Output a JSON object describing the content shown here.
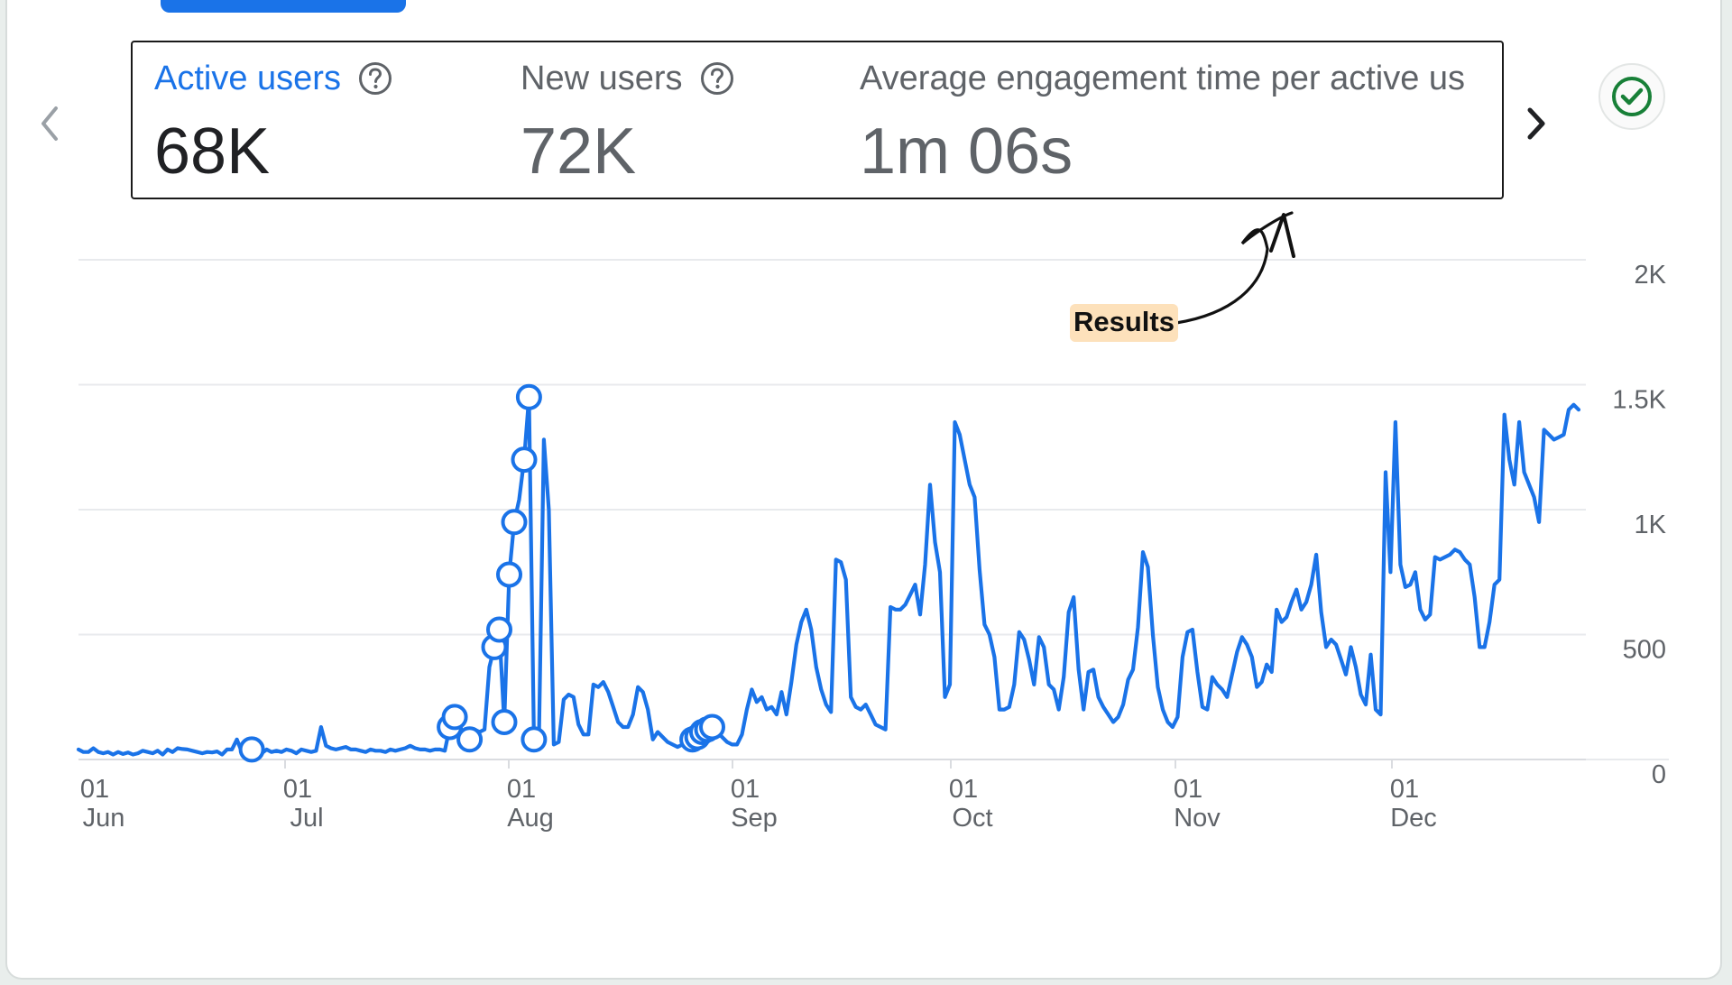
{
  "metrics": [
    {
      "label": "Active users",
      "value": "68K",
      "active": true
    },
    {
      "label": "New users",
      "value": "72K",
      "active": false
    },
    {
      "label": "Average engagement time per active us",
      "value": "1m 06s",
      "active": false
    }
  ],
  "annotation": {
    "label": "Results"
  },
  "colors": {
    "accent": "#1a73e8",
    "text_dark": "#202124",
    "text_muted": "#5f6368",
    "success": "#188038",
    "annotation_bg": "#fde1bb"
  },
  "icons": {
    "prev": "chevron-left-icon",
    "next": "chevron-right-icon",
    "help": "help-circle-icon",
    "check": "check-circle-icon"
  },
  "chart_data": {
    "type": "line",
    "series": [
      {
        "values": [
          40,
          30,
          30,
          45,
          30,
          25,
          30,
          20,
          30,
          22,
          28,
          20,
          25,
          35,
          30,
          25,
          35,
          20,
          40,
          30,
          45,
          42,
          40,
          35,
          30,
          25,
          30,
          28,
          32,
          20,
          40,
          40,
          80,
          30,
          35,
          40,
          30,
          25,
          40,
          30,
          35,
          30,
          40,
          35,
          25,
          40,
          35,
          30,
          35,
          130,
          55,
          45,
          40,
          45,
          50,
          40,
          40,
          35,
          30,
          40,
          35,
          35,
          30,
          40,
          35,
          40,
          45,
          55,
          45,
          40,
          40,
          35,
          40,
          40,
          35,
          130,
          170,
          100,
          90,
          80,
          120,
          110,
          120,
          370,
          450,
          520,
          150,
          740,
          950,
          1040,
          1200,
          1450,
          80,
          70,
          1280,
          1000,
          60,
          70,
          240,
          260,
          250,
          140,
          100,
          100,
          300,
          290,
          310,
          270,
          210,
          150,
          130,
          130,
          180,
          290,
          270,
          200,
          80,
          110,
          90,
          70,
          60,
          50,
          60,
          70,
          80,
          90,
          110,
          120,
          130,
          110,
          90,
          70,
          60,
          60,
          100,
          200,
          280,
          230,
          250,
          200,
          210,
          180,
          270,
          180,
          310,
          460,
          550,
          600,
          520,
          370,
          280,
          220,
          190,
          800,
          790,
          720,
          250,
          210,
          200,
          220,
          180,
          140,
          130,
          120,
          610,
          600,
          600,
          620,
          660,
          700,
          580,
          780,
          1100,
          870,
          750,
          250,
          300,
          1350,
          1300,
          1200,
          1100,
          1050,
          760,
          540,
          500,
          410,
          200,
          200,
          210,
          300,
          510,
          480,
          400,
          300,
          490,
          450,
          300,
          280,
          200,
          330,
          590,
          650,
          360,
          200,
          350,
          360,
          250,
          210,
          180,
          150,
          170,
          220,
          320,
          360,
          530,
          830,
          770,
          500,
          290,
          200,
          150,
          130,
          170,
          410,
          510,
          520,
          350,
          210,
          200,
          330,
          300,
          280,
          250,
          340,
          430,
          490,
          460,
          410,
          290,
          310,
          380,
          350,
          600,
          550,
          570,
          630,
          680,
          600,
          630,
          700,
          820,
          590,
          450,
          480,
          460,
          400,
          340,
          450,
          370,
          260,
          220,
          420,
          200,
          180,
          1150,
          750,
          1350,
          780,
          690,
          700,
          750,
          600,
          560,
          580,
          810,
          800,
          810,
          820,
          840,
          830,
          800,
          780,
          650,
          450,
          450,
          550,
          700,
          720,
          1380,
          1200,
          1100,
          1350,
          1150,
          1100,
          1050,
          950,
          1320,
          1300,
          1280,
          1290,
          1300,
          1400,
          1420,
          1400
        ]
      }
    ],
    "x_tick_labels": [
      [
        "01",
        "Jun"
      ],
      [
        "01",
        "Jul"
      ],
      [
        "01",
        "Aug"
      ],
      [
        "01",
        "Sep"
      ],
      [
        "01",
        "Oct"
      ],
      [
        "01",
        "Nov"
      ],
      [
        "01",
        "Dec"
      ]
    ],
    "y_tick_labels": [
      "0",
      "500",
      "1K",
      "1.5K",
      "2K"
    ],
    "y_ticks": [
      0,
      500,
      1000,
      1500,
      2000
    ],
    "ylim": [
      0,
      2000
    ],
    "markers": [
      {
        "index": 35
      },
      {
        "index": 75
      },
      {
        "index": 76
      },
      {
        "index": 79
      },
      {
        "index": 84
      },
      {
        "index": 85
      },
      {
        "index": 86
      },
      {
        "index": 87
      },
      {
        "index": 88
      },
      {
        "index": 90
      },
      {
        "index": 91
      },
      {
        "index": 92
      },
      {
        "index": 124
      },
      {
        "index": 125
      },
      {
        "index": 126
      },
      {
        "index": 127
      },
      {
        "index": 128
      }
    ],
    "grid": true,
    "legend": "none"
  }
}
